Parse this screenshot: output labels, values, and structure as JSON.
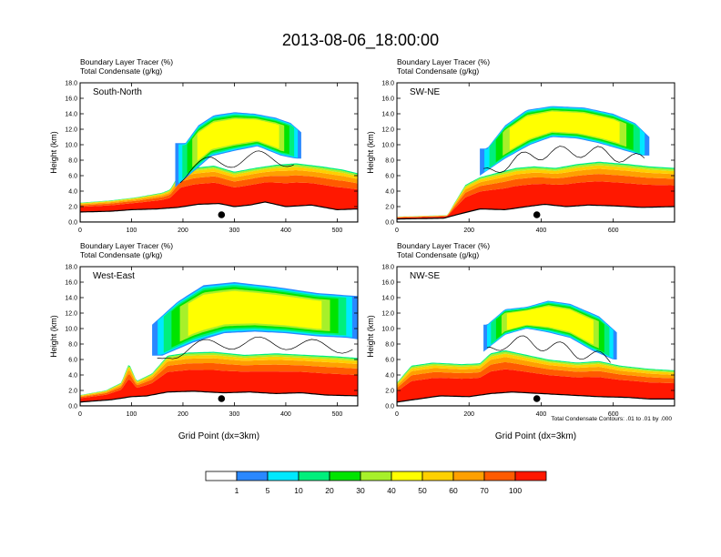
{
  "title": "2013-08-06_18:00:00",
  "colors": [
    "#ffffff",
    "#2a88ff",
    "#00e8ff",
    "#00ef7c",
    "#00e400",
    "#a7f02a",
    "#ffff00",
    "#ffd000",
    "#ffa000",
    "#ff5b00",
    "#ff1800"
  ],
  "colorbar": {
    "levels": [
      "1",
      "5",
      "10",
      "20",
      "30",
      "40",
      "50",
      "60",
      "70",
      "100"
    ]
  },
  "contour_note": "Total Condensate Contours: .01 to .01 by .000",
  "chart_data": [
    {
      "type": "heatmap",
      "label": "South-North",
      "legend_line1": "Boundary Layer Tracer   (%)",
      "legend_line2": "Total Condensate   (g/kg)",
      "ylabel": "Height (km)",
      "xlabel": "",
      "xlim": [
        0,
        540
      ],
      "ylim": [
        0,
        18
      ],
      "x_ticks": [
        "0",
        "100",
        "200",
        "300",
        "400",
        "500"
      ],
      "y_ticks": [
        "0.0",
        "2.0",
        "4.0",
        "6.0",
        "8.0",
        "10.0",
        "12.0",
        "14.0",
        "16.0",
        "18.0"
      ],
      "marker_x": 275,
      "surface": [
        [
          0,
          1.3
        ],
        [
          60,
          1.4
        ],
        [
          100,
          1.6
        ],
        [
          150,
          1.7
        ],
        [
          190,
          1.9
        ],
        [
          230,
          2.3
        ],
        [
          270,
          2.4
        ],
        [
          300,
          2.0
        ],
        [
          330,
          2.2
        ],
        [
          360,
          2.6
        ],
        [
          400,
          2.0
        ],
        [
          450,
          2.2
        ],
        [
          500,
          1.6
        ],
        [
          540,
          1.7
        ]
      ],
      "tracer_top": [
        [
          0,
          2.5
        ],
        [
          60,
          2.8
        ],
        [
          110,
          3.2
        ],
        [
          160,
          3.8
        ],
        [
          175,
          4.2
        ],
        [
          195,
          6.5
        ],
        [
          220,
          7.0
        ],
        [
          260,
          7.3
        ],
        [
          300,
          6.5
        ],
        [
          340,
          7.0
        ],
        [
          380,
          7.4
        ],
        [
          420,
          7.6
        ],
        [
          470,
          7.2
        ],
        [
          510,
          6.8
        ],
        [
          540,
          6.3
        ]
      ],
      "anvil_lower": [
        [
          185,
          4.5
        ],
        [
          220,
          6.5
        ],
        [
          255,
          8.5
        ],
        [
          300,
          9.2
        ],
        [
          345,
          9.8
        ],
        [
          390,
          8.6
        ],
        [
          420,
          8.2
        ]
      ],
      "anvil_upper": [
        [
          205,
          10.2
        ],
        [
          230,
          12.5
        ],
        [
          260,
          13.8
        ],
        [
          300,
          14.2
        ],
        [
          340,
          14.0
        ],
        [
          380,
          13.5
        ],
        [
          410,
          12.8
        ],
        [
          430,
          11.6
        ]
      ]
    },
    {
      "type": "heatmap",
      "label": "SW-NE",
      "legend_line1": "Boundary Layer Tracer   (%)",
      "legend_line2": "Total Condensate   (g/kg)",
      "ylabel": "Height (km)",
      "xlabel": "",
      "xlim": [
        0,
        770
      ],
      "ylim": [
        0,
        18
      ],
      "x_ticks": [
        "0",
        "200",
        "400",
        "600"
      ],
      "y_ticks": [
        "0.0",
        "2.0",
        "4.0",
        "6.0",
        "8.0",
        "10.0",
        "12.0",
        "14.0",
        "16.0",
        "18.0"
      ],
      "marker_x": 388,
      "surface": [
        [
          0,
          0.4
        ],
        [
          130,
          0.5
        ],
        [
          170,
          1.0
        ],
        [
          230,
          1.7
        ],
        [
          300,
          1.6
        ],
        [
          360,
          2.0
        ],
        [
          410,
          2.3
        ],
        [
          470,
          2.0
        ],
        [
          530,
          2.2
        ],
        [
          600,
          2.1
        ],
        [
          680,
          1.9
        ],
        [
          770,
          2.0
        ]
      ],
      "tracer_top": [
        [
          0,
          0.7
        ],
        [
          140,
          0.9
        ],
        [
          160,
          2.5
        ],
        [
          190,
          4.8
        ],
        [
          230,
          5.8
        ],
        [
          280,
          6.4
        ],
        [
          330,
          7.0
        ],
        [
          380,
          7.2
        ],
        [
          440,
          7.0
        ],
        [
          500,
          7.5
        ],
        [
          560,
          7.8
        ],
        [
          640,
          7.5
        ],
        [
          700,
          7.2
        ],
        [
          770,
          7.0
        ]
      ],
      "anvil_lower": [
        [
          230,
          6.0
        ],
        [
          300,
          8.2
        ],
        [
          370,
          10.0
        ],
        [
          430,
          11.0
        ],
        [
          500,
          10.8
        ],
        [
          560,
          10.2
        ],
        [
          620,
          9.4
        ],
        [
          680,
          8.6
        ]
      ],
      "anvil_upper": [
        [
          250,
          9.5
        ],
        [
          300,
          12.5
        ],
        [
          360,
          14.5
        ],
        [
          430,
          15.0
        ],
        [
          520,
          14.8
        ],
        [
          600,
          14.0
        ],
        [
          660,
          12.8
        ],
        [
          700,
          11.0
        ]
      ]
    },
    {
      "type": "heatmap",
      "label": "West-East",
      "legend_line1": "Boundary Layer Tracer   (%)",
      "legend_line2": "Total Condensate   (g/kg)",
      "ylabel": "Height (km)",
      "xlabel": "Grid Point (dx=3km)",
      "xlim": [
        0,
        540
      ],
      "ylim": [
        0,
        18
      ],
      "x_ticks": [
        "0",
        "100",
        "200",
        "300",
        "400",
        "500"
      ],
      "y_ticks": [
        "0.0",
        "2.0",
        "4.0",
        "6.0",
        "8.0",
        "10.0",
        "12.0",
        "14.0",
        "16.0",
        "18.0"
      ],
      "marker_x": 275,
      "surface": [
        [
          0,
          0.5
        ],
        [
          60,
          0.8
        ],
        [
          100,
          1.2
        ],
        [
          130,
          1.3
        ],
        [
          170,
          1.8
        ],
        [
          220,
          1.9
        ],
        [
          280,
          1.7
        ],
        [
          330,
          1.8
        ],
        [
          380,
          1.6
        ],
        [
          430,
          1.7
        ],
        [
          480,
          1.4
        ],
        [
          540,
          1.3
        ]
      ],
      "tracer_top": [
        [
          0,
          1.4
        ],
        [
          50,
          2.0
        ],
        [
          80,
          3.0
        ],
        [
          95,
          5.5
        ],
        [
          110,
          3.2
        ],
        [
          140,
          4.2
        ],
        [
          170,
          6.5
        ],
        [
          210,
          6.9
        ],
        [
          260,
          7.0
        ],
        [
          320,
          6.6
        ],
        [
          380,
          6.8
        ],
        [
          440,
          6.6
        ],
        [
          500,
          6.4
        ],
        [
          540,
          6.2
        ]
      ],
      "anvil_lower": [
        [
          160,
          6.5
        ],
        [
          220,
          8.2
        ],
        [
          280,
          9.4
        ],
        [
          340,
          9.6
        ],
        [
          400,
          9.4
        ],
        [
          460,
          9.0
        ],
        [
          520,
          8.8
        ],
        [
          540,
          8.6
        ]
      ],
      "anvil_upper": [
        [
          140,
          10.5
        ],
        [
          190,
          13.5
        ],
        [
          240,
          15.6
        ],
        [
          300,
          16.0
        ],
        [
          380,
          15.4
        ],
        [
          460,
          14.6
        ],
        [
          540,
          14.2
        ]
      ]
    },
    {
      "type": "heatmap",
      "label": "NW-SE",
      "legend_line1": "Boundary Layer Tracer   (%)",
      "legend_line2": "Total Condensate   (g/kg)",
      "ylabel": "Height (km)",
      "xlabel": "Grid Point (dx=3km)",
      "xlim": [
        0,
        770
      ],
      "ylim": [
        0,
        18
      ],
      "x_ticks": [
        "0",
        "200",
        "400",
        "600"
      ],
      "y_ticks": [
        "0.0",
        "2.0",
        "4.0",
        "6.0",
        "8.0",
        "10.0",
        "12.0",
        "14.0",
        "16.0",
        "18.0"
      ],
      "marker_x": 388,
      "surface": [
        [
          0,
          0.5
        ],
        [
          60,
          0.9
        ],
        [
          120,
          1.3
        ],
        [
          200,
          1.2
        ],
        [
          260,
          1.6
        ],
        [
          320,
          1.8
        ],
        [
          400,
          1.6
        ],
        [
          480,
          1.4
        ],
        [
          560,
          1.2
        ],
        [
          640,
          1.1
        ],
        [
          700,
          0.9
        ],
        [
          770,
          0.9
        ]
      ],
      "tracer_top": [
        [
          0,
          3.0
        ],
        [
          40,
          5.2
        ],
        [
          100,
          5.6
        ],
        [
          180,
          5.4
        ],
        [
          230,
          5.5
        ],
        [
          260,
          6.8
        ],
        [
          300,
          7.2
        ],
        [
          360,
          6.6
        ],
        [
          420,
          6.0
        ],
        [
          500,
          5.6
        ],
        [
          560,
          5.8
        ],
        [
          620,
          5.2
        ],
        [
          700,
          4.8
        ],
        [
          770,
          4.6
        ]
      ],
      "anvil_lower": [
        [
          240,
          7.0
        ],
        [
          300,
          9.2
        ],
        [
          360,
          10.0
        ],
        [
          420,
          9.5
        ],
        [
          480,
          8.8
        ],
        [
          540,
          7.2
        ],
        [
          600,
          6.0
        ]
      ],
      "anvil_upper": [
        [
          250,
          10.5
        ],
        [
          300,
          12.5
        ],
        [
          360,
          12.8
        ],
        [
          420,
          13.6
        ],
        [
          480,
          13.2
        ],
        [
          560,
          11.6
        ],
        [
          610,
          9.5
        ]
      ]
    }
  ]
}
